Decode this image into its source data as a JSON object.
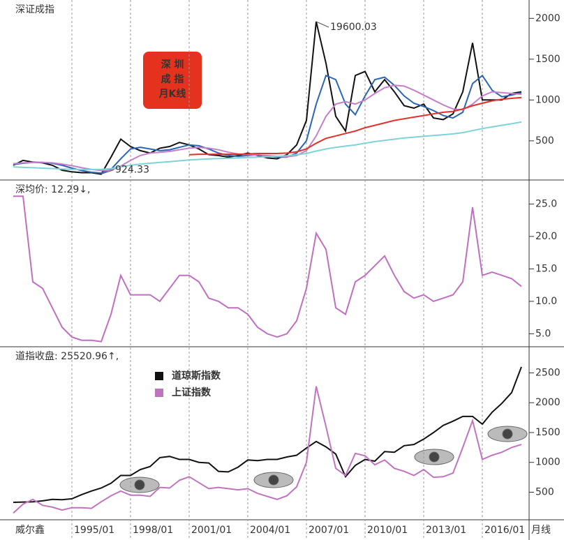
{
  "chart_data": [
    {
      "type": "line",
      "title": "深证成指",
      "badge": [
        "深 圳",
        "成 指",
        "月K线"
      ],
      "x": [
        "1992/01",
        "1992/07",
        "1993/01",
        "1993/07",
        "1994/01",
        "1994/07",
        "1995/01",
        "1995/07",
        "1996/01",
        "1996/07",
        "1997/01",
        "1997/07",
        "1998/01",
        "1998/07",
        "1999/01",
        "1999/07",
        "2000/01",
        "2000/07",
        "2001/01",
        "2001/07",
        "2002/01",
        "2002/07",
        "2003/01",
        "2003/07",
        "2004/01",
        "2004/07",
        "2005/01",
        "2005/07",
        "2006/01",
        "2006/07",
        "2007/01",
        "2007/07",
        "2008/01",
        "2008/07",
        "2009/01",
        "2009/07",
        "2010/01",
        "2010/07",
        "2011/01",
        "2011/07",
        "2012/01",
        "2012/07",
        "2013/01",
        "2013/07",
        "2014/01",
        "2014/07",
        "2015/01",
        "2015/07",
        "2016/01",
        "2016/07",
        "2017/01",
        "2017/07",
        "2018/01"
      ],
      "series": [
        {
          "color": "#111111",
          "values": [
            200,
            260,
            240,
            230,
            200,
            140,
            120,
            110,
            110,
            92,
            300,
            520,
            430,
            380,
            350,
            410,
            430,
            480,
            450,
            400,
            330,
            320,
            300,
            320,
            350,
            320,
            290,
            280,
            330,
            450,
            750,
            1960,
            1450,
            800,
            620,
            1300,
            1350,
            1100,
            1250,
            1100,
            930,
            900,
            950,
            780,
            760,
            830,
            1100,
            1700,
            1000,
            1000,
            1000,
            1080,
            1100
          ]
        },
        {
          "color": "#2a66b3",
          "values": [
            210,
            225,
            235,
            235,
            225,
            200,
            165,
            135,
            115,
            105,
            150,
            280,
            400,
            420,
            400,
            380,
            390,
            420,
            450,
            440,
            400,
            350,
            320,
            310,
            320,
            330,
            315,
            300,
            300,
            350,
            500,
            950,
            1300,
            1250,
            950,
            820,
            1050,
            1250,
            1280,
            1180,
            1050,
            960,
            920,
            870,
            810,
            780,
            850,
            1200,
            1300,
            1120,
            1040,
            1060,
            1090
          ]
        },
        {
          "color": "#c57fca",
          "values": [
            220,
            230,
            235,
            235,
            230,
            215,
            195,
            170,
            150,
            135,
            140,
            190,
            260,
            320,
            350,
            360,
            370,
            390,
            410,
            420,
            410,
            390,
            360,
            340,
            330,
            325,
            320,
            310,
            305,
            320,
            380,
            560,
            800,
            950,
            980,
            950,
            1000,
            1080,
            1150,
            1180,
            1170,
            1120,
            1060,
            1000,
            940,
            890,
            880,
            950,
            1050,
            1100,
            1090,
            1080,
            1070
          ]
        },
        {
          "color": "#e2302a",
          "values": [
            null,
            null,
            null,
            null,
            null,
            null,
            null,
            null,
            null,
            null,
            null,
            null,
            null,
            null,
            null,
            null,
            null,
            null,
            330,
            335,
            335,
            335,
            335,
            335,
            340,
            345,
            345,
            345,
            350,
            365,
            400,
            470,
            530,
            560,
            590,
            620,
            660,
            690,
            720,
            750,
            770,
            790,
            810,
            830,
            850,
            860,
            890,
            930,
            960,
            990,
            1010,
            1020,
            1030
          ]
        },
        {
          "color": "#7fd3d8",
          "values": [
            180,
            175,
            170,
            165,
            160,
            155,
            150,
            148,
            148,
            150,
            160,
            180,
            200,
            215,
            225,
            235,
            245,
            255,
            265,
            272,
            278,
            282,
            286,
            290,
            295,
            300,
            305,
            310,
            318,
            330,
            345,
            375,
            400,
            420,
            435,
            450,
            470,
            490,
            505,
            520,
            535,
            545,
            555,
            565,
            575,
            585,
            600,
            625,
            650,
            670,
            690,
            710,
            730
          ]
        }
      ],
      "annotations": [
        {
          "text": "19600.03",
          "x": "2007/07",
          "y": 1960
        },
        {
          "text": "924.33",
          "x": "1996/07",
          "y": 92
        }
      ],
      "ylim": [
        20,
        2225
      ],
      "yticks": [
        500,
        1000,
        1500,
        2000
      ]
    },
    {
      "type": "line",
      "title": "深均价: 12.29↓,",
      "x": [
        "1992/01",
        "1992/07",
        "1993/01",
        "1993/07",
        "1994/01",
        "1994/07",
        "1995/01",
        "1995/07",
        "1996/01",
        "1996/07",
        "1997/01",
        "1997/07",
        "1998/01",
        "1998/07",
        "1999/01",
        "1999/07",
        "2000/01",
        "2000/07",
        "2001/01",
        "2001/07",
        "2002/01",
        "2002/07",
        "2003/01",
        "2003/07",
        "2004/01",
        "2004/07",
        "2005/01",
        "2005/07",
        "2006/01",
        "2006/07",
        "2007/01",
        "2007/07",
        "2008/01",
        "2008/07",
        "2009/01",
        "2009/07",
        "2010/01",
        "2010/07",
        "2011/01",
        "2011/07",
        "2012/01",
        "2012/07",
        "2013/01",
        "2013/07",
        "2014/01",
        "2014/07",
        "2015/01",
        "2015/07",
        "2016/01",
        "2016/07",
        "2017/01",
        "2017/07",
        "2018/01"
      ],
      "color": "#c06fc0",
      "values": [
        26.2,
        26.2,
        13,
        12,
        9,
        6,
        4.5,
        4,
        4,
        3.8,
        8,
        14,
        11,
        11,
        11,
        10,
        12,
        14,
        14,
        13,
        10.5,
        10,
        9,
        9,
        8,
        6,
        5,
        4.5,
        5,
        7,
        12,
        20.5,
        18,
        9,
        8,
        13,
        14,
        15.5,
        17,
        14,
        11.5,
        10.5,
        11,
        10,
        10.5,
        11,
        13,
        24.5,
        14,
        14.5,
        14,
        13.5,
        12.3
      ],
      "ylim": [
        3,
        28.7
      ],
      "yticks": [
        {
          "value": 5,
          "label": "5.0"
        },
        {
          "value": 10,
          "label": "10.0"
        },
        {
          "value": 15,
          "label": "15.0"
        },
        {
          "value": 20,
          "label": "20.0"
        },
        {
          "value": 25,
          "label": "25.0"
        }
      ]
    },
    {
      "type": "line",
      "title": "道指收盘: 25520.96↑,",
      "legend": "upper left",
      "x": [
        "1992/01",
        "1992/07",
        "1993/01",
        "1993/07",
        "1994/01",
        "1994/07",
        "1995/01",
        "1995/07",
        "1996/01",
        "1996/07",
        "1997/01",
        "1997/07",
        "1998/01",
        "1998/07",
        "1999/01",
        "1999/07",
        "2000/01",
        "2000/07",
        "2001/01",
        "2001/07",
        "2002/01",
        "2002/07",
        "2003/01",
        "2003/07",
        "2004/01",
        "2004/07",
        "2005/01",
        "2005/07",
        "2006/01",
        "2006/07",
        "2007/01",
        "2007/07",
        "2008/01",
        "2008/07",
        "2009/01",
        "2009/07",
        "2010/01",
        "2010/07",
        "2011/01",
        "2011/07",
        "2012/01",
        "2012/07",
        "2013/01",
        "2013/07",
        "2014/01",
        "2014/07",
        "2015/01",
        "2015/07",
        "2016/01",
        "2016/07",
        "2017/01",
        "2017/07",
        "2018/01"
      ],
      "series": [
        {
          "name": "道琼斯指数",
          "color": "#111111",
          "values": [
            330,
            335,
            340,
            355,
            380,
            375,
            390,
            460,
            520,
            570,
            650,
            780,
            780,
            880,
            930,
            1080,
            1100,
            1050,
            1050,
            1000,
            990,
            850,
            840,
            920,
            1040,
            1030,
            1050,
            1050,
            1090,
            1120,
            1240,
            1350,
            1260,
            1140,
            760,
            950,
            1050,
            1020,
            1180,
            1170,
            1280,
            1300,
            1390,
            1500,
            1620,
            1690,
            1770,
            1770,
            1640,
            1840,
            1990,
            2170,
            2600
          ]
        },
        {
          "name": "上证指数",
          "color": "#c074c0",
          "values": [
            150,
            300,
            380,
            280,
            250,
            200,
            240,
            240,
            230,
            340,
            440,
            520,
            450,
            450,
            430,
            580,
            570,
            700,
            760,
            660,
            560,
            580,
            560,
            540,
            560,
            480,
            430,
            380,
            440,
            590,
            1000,
            2275,
            1600,
            900,
            780,
            1150,
            1110,
            960,
            1040,
            900,
            850,
            780,
            880,
            750,
            760,
            820,
            1250,
            1700,
            1050,
            1120,
            1170,
            1250,
            1300
          ]
        }
      ],
      "ylim": [
        38,
        2938
      ],
      "yticks": [
        500,
        1000,
        1500,
        2000,
        2500
      ],
      "xticks": [
        "1995/01",
        "1998/01",
        "2001/01",
        "2004/01",
        "2007/01",
        "2010/01",
        "2013/01",
        "2016/01"
      ],
      "footer": {
        "brand": "威尔鑫",
        "period": "月线"
      }
    }
  ]
}
